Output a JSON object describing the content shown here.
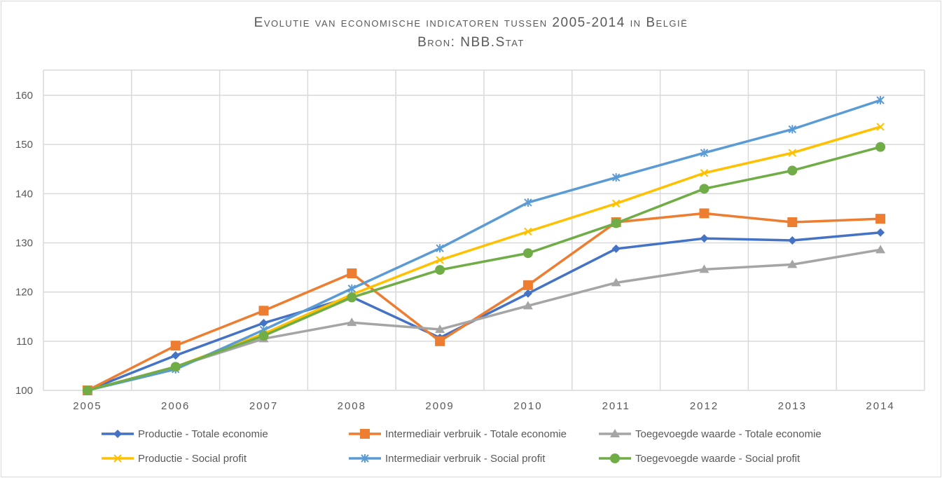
{
  "chart_data": {
    "type": "line",
    "title": "Evolutie van economische indicatoren tussen 2005-2014 in België",
    "subtitle": "Bron: NBB.Stat",
    "xlabel": "",
    "ylabel": "",
    "categories": [
      "2005",
      "2006",
      "2007",
      "2008",
      "2009",
      "2010",
      "2011",
      "2012",
      "2013",
      "2014"
    ],
    "ylim": [
      100,
      160
    ],
    "yticks": [
      100,
      110,
      120,
      130,
      140,
      150,
      160
    ],
    "grid": true,
    "legend_placement": "bottom",
    "series": [
      {
        "name": "Productie - Totale economie",
        "color": "#4472c4",
        "marker": "diamond",
        "values": [
          100,
          107.1,
          113.7,
          119.0,
          110.7,
          119.7,
          128.8,
          130.9,
          130.5,
          132.1
        ]
      },
      {
        "name": "Intermediair verbruik - Totale economie",
        "color": "#ed7d31",
        "marker": "square",
        "values": [
          100,
          109.1,
          116.2,
          123.8,
          110.0,
          121.4,
          134.2,
          136.0,
          134.2,
          134.9
        ]
      },
      {
        "name": "Toegevoegde waarde - Totale economie",
        "color": "#a5a5a5",
        "marker": "triangle",
        "values": [
          100,
          104.8,
          110.5,
          113.8,
          112.4,
          117.2,
          121.9,
          124.6,
          125.6,
          128.6
        ]
      },
      {
        "name": "Productie - Social profit",
        "color": "#ffc000",
        "marker": "x",
        "values": [
          100,
          104.8,
          111.5,
          119.5,
          126.5,
          132.3,
          138.0,
          144.2,
          148.3,
          153.6
        ]
      },
      {
        "name": "Intermediair verbruik - Social profit",
        "color": "#5b9bd5",
        "marker": "star",
        "values": [
          100,
          104.3,
          112.3,
          120.7,
          128.9,
          138.2,
          143.3,
          148.3,
          153.1,
          159.0
        ]
      },
      {
        "name": "Toegevoegde waarde - Social profit",
        "color": "#70ad47",
        "marker": "circle",
        "values": [
          100,
          104.8,
          111.1,
          118.9,
          124.5,
          127.9,
          134.0,
          141.0,
          144.7,
          149.5
        ]
      }
    ]
  }
}
